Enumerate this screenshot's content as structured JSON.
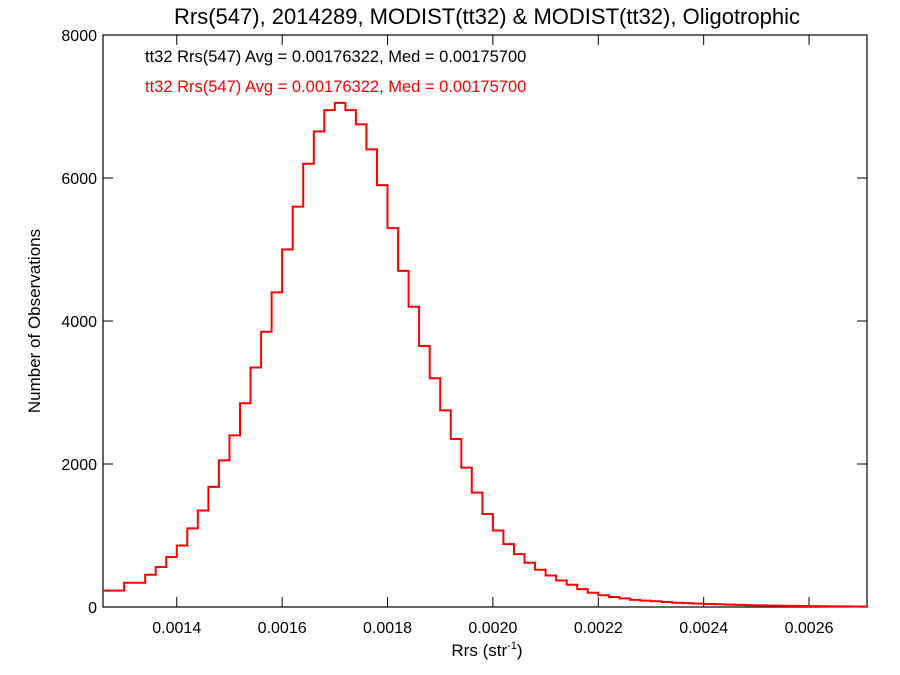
{
  "chart_data": {
    "type": "line",
    "title": "Rrs(547), 2014289, MODIST(tt32) & MODIST(tt32), Oligotrophic",
    "xlabel": "Rrs (str",
    "xlabel_sup": "-1",
    "xlabel_close": ")",
    "ylabel": "Number of Observations",
    "xlim": [
      0.00126,
      0.00271
    ],
    "ylim": [
      0,
      8000
    ],
    "xticks": [
      0.0014,
      0.0016,
      0.0018,
      0.002,
      0.0022,
      0.0024,
      0.0026
    ],
    "xtick_labels": [
      "0.0014",
      "0.0016",
      "0.0018",
      "0.0020",
      "0.0022",
      "0.0024",
      "0.0026"
    ],
    "yticks": [
      0,
      2000,
      4000,
      6000,
      8000
    ],
    "ytick_labels": [
      "0",
      "2000",
      "4000",
      "6000",
      "8000"
    ],
    "grid": false,
    "step": true,
    "annotations": [
      {
        "text": "tt32 Rrs(547) Avg = 0.00176322, Med = 0.00175700",
        "color": "#000000"
      },
      {
        "text": "tt32 Rrs(547) Avg = 0.00176322, Med = 0.00175700",
        "color": "#ff0000"
      }
    ],
    "series": [
      {
        "color": "#ff0000",
        "x": [
          0.00126,
          0.0013,
          0.00134,
          0.00136,
          0.00138,
          0.0014,
          0.00142,
          0.00144,
          0.00146,
          0.00148,
          0.0015,
          0.00152,
          0.00154,
          0.00156,
          0.00158,
          0.0016,
          0.00162,
          0.00164,
          0.00166,
          0.00168,
          0.0017,
          0.00172,
          0.00174,
          0.00176,
          0.00178,
          0.0018,
          0.00182,
          0.00184,
          0.00186,
          0.00188,
          0.0019,
          0.00192,
          0.00194,
          0.00196,
          0.00198,
          0.002,
          0.00202,
          0.00204,
          0.00206,
          0.00208,
          0.0021,
          0.00212,
          0.00214,
          0.00216,
          0.00218,
          0.0022,
          0.00222,
          0.00224,
          0.00226,
          0.00228,
          0.0023,
          0.00232,
          0.00234,
          0.00236,
          0.00238,
          0.0024,
          0.00242,
          0.00244,
          0.00246,
          0.00248,
          0.0025,
          0.00252,
          0.00254,
          0.00256,
          0.00258,
          0.0026,
          0.00262,
          0.00264,
          0.00266,
          0.00268,
          0.0027
        ],
        "y": [
          230,
          340,
          450,
          560,
          700,
          860,
          1100,
          1350,
          1680,
          2050,
          2400,
          2850,
          3350,
          3850,
          4400,
          5000,
          5600,
          6200,
          6650,
          6950,
          7050,
          6950,
          6750,
          6400,
          5900,
          5300,
          4700,
          4200,
          3650,
          3200,
          2750,
          2350,
          1950,
          1600,
          1300,
          1070,
          880,
          740,
          620,
          520,
          440,
          370,
          310,
          250,
          200,
          165,
          140,
          120,
          100,
          90,
          80,
          70,
          60,
          55,
          48,
          42,
          38,
          33,
          29,
          25,
          22,
          20,
          18,
          16,
          14,
          12,
          10,
          9,
          8,
          7,
          6
        ]
      }
    ]
  }
}
